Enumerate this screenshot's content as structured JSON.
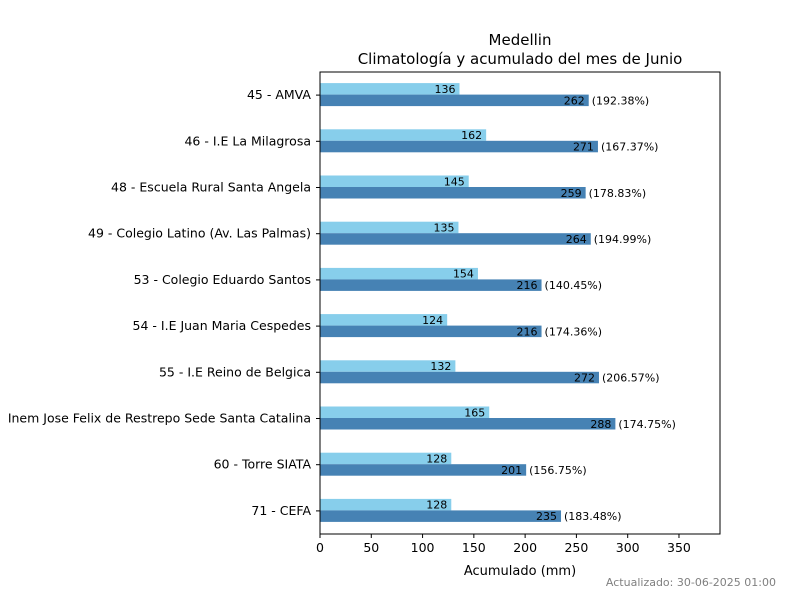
{
  "chart_data": {
    "type": "bar",
    "orientation": "horizontal",
    "title": "Medellin",
    "subtitle": "Climatología y acumulado del mes de Junio",
    "xlabel": "Acumulado (mm)",
    "ylabel": "",
    "xlim": [
      0,
      390
    ],
    "xticks": [
      0,
      50,
      100,
      150,
      200,
      250,
      300,
      350
    ],
    "grid": false,
    "categories": [
      "45 - AMVA",
      "46 - I.E La Milagrosa ",
      "48 - Escuela Rural Santa Angela",
      "49 - Colegio Latino (Av. Las Palmas)",
      "53 - Colegio Eduardo Santos",
      "54 - I.E Juan Maria Cespedes",
      "55 - I.E Reino de Belgica",
      "Inem Jose Felix de Restrepo Sede Santa Catalina ",
      "60 - Torre SIATA",
      "71 - CEFA"
    ],
    "series": [
      {
        "color": "#87CEEB",
        "values": [
          136,
          162,
          145,
          135,
          154,
          124,
          132,
          165,
          128,
          128
        ],
        "labels": [
          "136",
          "162",
          "145",
          "135",
          "154",
          "124",
          "132",
          "165",
          "128",
          "128"
        ]
      },
      {
        "color": "#4682B4",
        "values": [
          262,
          271,
          259,
          264,
          216,
          216,
          272,
          288,
          201,
          235
        ],
        "labels": [
          "262",
          "271",
          "259",
          "264",
          "216",
          "216",
          "272",
          "288",
          "201",
          "235"
        ],
        "percent_labels": [
          "(192.38%)",
          "(167.37%)",
          "(178.83%)",
          "(194.99%)",
          "(140.45%)",
          "(174.36%)",
          "(206.57%)",
          "(174.75%)",
          "(156.75%)",
          "(183.48%)"
        ]
      }
    ]
  },
  "footer": {
    "updated": "Actualizado: 30-06-2025 01:00"
  }
}
